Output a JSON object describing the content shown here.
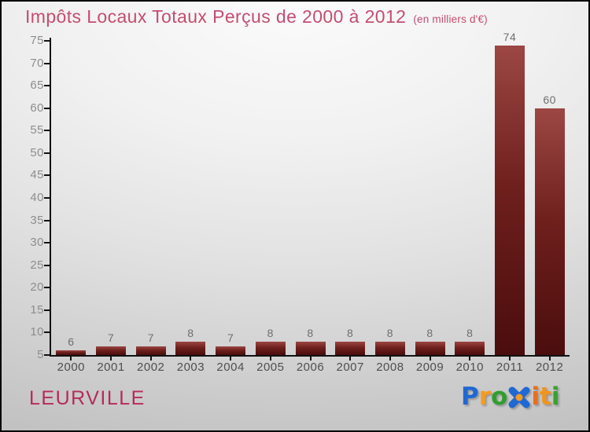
{
  "header": {
    "title": "Impôts Locaux Totaux Perçus de 2000 à 2012",
    "subtitle": "(en milliers d'€)",
    "title_color": "#c44d72"
  },
  "chart_data": {
    "type": "bar",
    "title": "Impôts Locaux Totaux Perçus de 2000 à 2012",
    "unit_note": "(en milliers d'€)",
    "categories": [
      "2000",
      "2001",
      "2002",
      "2003",
      "2004",
      "2005",
      "2006",
      "2007",
      "2008",
      "2009",
      "2010",
      "2011",
      "2012"
    ],
    "values": [
      6,
      7,
      7,
      8,
      7,
      8,
      8,
      8,
      8,
      8,
      8,
      74,
      60
    ],
    "xlabel": "",
    "ylabel": "",
    "ylim": [
      5,
      75
    ],
    "ytick_step": 5,
    "grid": false,
    "legend": "none",
    "value_labels": true,
    "colors": {
      "bar_top": "#9c4744",
      "bar_mid": "#6f201d",
      "bar_bottom": "#4a0d0d",
      "axis": "#111111",
      "y_label": "#8d8d8d",
      "x_label": "#4f4f4f",
      "value_label": "#6e6e6e"
    }
  },
  "footer": {
    "commune": "LEURVILLE",
    "commune_color": "#b62b58"
  },
  "logo": {
    "name": "Proxiti",
    "x_dot_color": "#f59b1f",
    "x_color": "#2068d2",
    "letters": [
      {
        "char": "P",
        "color": "#2068d2"
      },
      {
        "char": "r",
        "color": "#f59b1f"
      },
      {
        "char": "o",
        "color": "#2f9e2f"
      },
      {
        "char": "X",
        "color": "#2068d2",
        "icon": true
      },
      {
        "char": "i",
        "color": "#e96f1b"
      },
      {
        "char": "t",
        "color": "#f0941e"
      },
      {
        "char": "i",
        "color": "#35a42d"
      }
    ]
  }
}
